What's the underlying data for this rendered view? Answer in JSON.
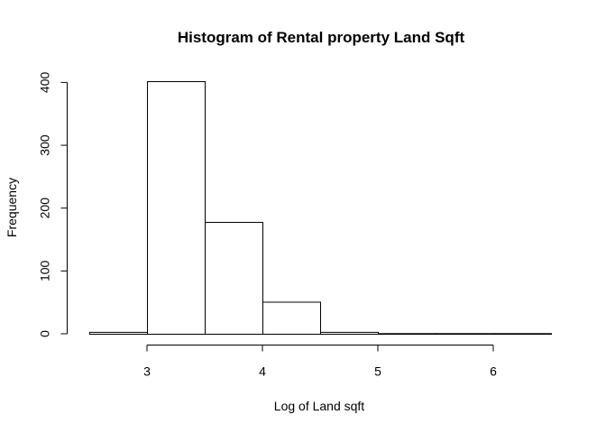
{
  "chart_data": {
    "type": "bar",
    "title": "Histogram of Rental property Land Sqft",
    "xlabel": "Log of Land sqft",
    "ylabel": "Frequency",
    "bins": [
      {
        "start": 2.5,
        "end": 3.0,
        "count": 3
      },
      {
        "start": 3.0,
        "end": 3.5,
        "count": 402
      },
      {
        "start": 3.5,
        "end": 4.0,
        "count": 178
      },
      {
        "start": 4.0,
        "end": 4.5,
        "count": 51
      },
      {
        "start": 4.5,
        "end": 5.0,
        "count": 3
      },
      {
        "start": 5.0,
        "end": 5.5,
        "count": 1
      },
      {
        "start": 5.5,
        "end": 6.0,
        "count": 1
      },
      {
        "start": 6.0,
        "end": 6.5,
        "count": 1
      }
    ],
    "xlim": [
      2.5,
      6.5
    ],
    "ylim": [
      0,
      402
    ],
    "x_ticks": [
      "3",
      "4",
      "5",
      "6"
    ],
    "y_ticks": [
      "0",
      "100",
      "200",
      "300",
      "400"
    ],
    "grid": false,
    "legend": "none"
  }
}
